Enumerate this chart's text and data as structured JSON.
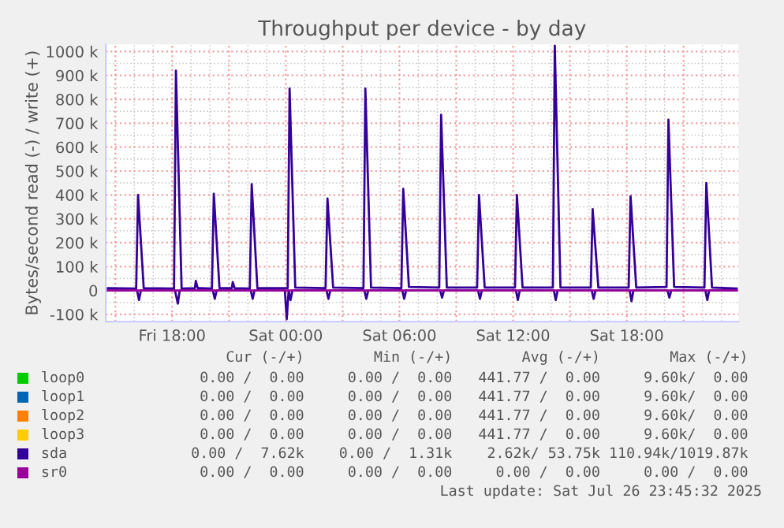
{
  "chart_data": {
    "type": "line",
    "title": "Throughput per device - by day",
    "ylabel": "Bytes/second read (-) / write (+)",
    "xlim": [
      "2025-07-25T14:30",
      "2025-07-26T23:54"
    ],
    "xticks": [
      {
        "value": "2025-07-25T15:00",
        "label": null
      },
      {
        "value": "2025-07-25T18:00",
        "label": "Fri 18:00"
      },
      {
        "value": "2025-07-25T21:00",
        "label": null
      },
      {
        "value": "2025-07-26T00:00",
        "label": "Sat 00:00"
      },
      {
        "value": "2025-07-26T03:00",
        "label": null
      },
      {
        "value": "2025-07-26T06:00",
        "label": "Sat 06:00"
      },
      {
        "value": "2025-07-26T09:00",
        "label": null
      },
      {
        "value": "2025-07-26T12:00",
        "label": "Sat 12:00"
      },
      {
        "value": "2025-07-26T15:00",
        "label": null
      },
      {
        "value": "2025-07-26T18:00",
        "label": "Sat 18:00"
      },
      {
        "value": "2025-07-26T21:00",
        "label": null
      }
    ],
    "ylim": [
      -130,
      1030
    ],
    "yticks": [
      {
        "value": -100,
        "label": "-100 k"
      },
      {
        "value": 0,
        "label": "0"
      },
      {
        "value": 100,
        "label": "100 k"
      },
      {
        "value": 200,
        "label": "200 k"
      },
      {
        "value": 300,
        "label": "300 k"
      },
      {
        "value": 400,
        "label": "400 k"
      },
      {
        "value": 500,
        "label": "500 k"
      },
      {
        "value": 600,
        "label": "600 k"
      },
      {
        "value": 700,
        "label": "700 k"
      },
      {
        "value": 800,
        "label": "800 k"
      },
      {
        "value": 900,
        "label": "900 k"
      },
      {
        "value": 1000,
        "label": "1000 k"
      }
    ],
    "grid": true,
    "legend": "bottom left",
    "marker": "none",
    "line_style": "solid",
    "series": [
      {
        "name": "loop0",
        "color": "#00cc00"
      },
      {
        "name": "loop1",
        "color": "#0066b3"
      },
      {
        "name": "loop2",
        "color": "#ff8000"
      },
      {
        "name": "loop3",
        "color": "#ffcc00"
      },
      {
        "name": "sda",
        "color": "#330099",
        "x": [
          "2025-07-25T14:36",
          "2025-07-25T16:06",
          "2025-07-25T16:12",
          "2025-07-25T16:30",
          "2025-07-25T18:06",
          "2025-07-25T18:12",
          "2025-07-25T18:30",
          "2025-07-25T19:12",
          "2025-07-25T19:15",
          "2025-07-25T19:21",
          "2025-07-25T20:06",
          "2025-07-25T20:12",
          "2025-07-25T20:30",
          "2025-07-25T21:09",
          "2025-07-25T21:12",
          "2025-07-25T21:18",
          "2025-07-25T22:06",
          "2025-07-25T22:12",
          "2025-07-25T22:30",
          "2025-07-26T00:06",
          "2025-07-26T00:12",
          "2025-07-26T00:30",
          "2025-07-26T02:06",
          "2025-07-26T02:12",
          "2025-07-26T02:30",
          "2025-07-26T04:06",
          "2025-07-26T04:12",
          "2025-07-26T04:30",
          "2025-07-26T06:06",
          "2025-07-26T06:12",
          "2025-07-26T06:30",
          "2025-07-26T08:06",
          "2025-07-26T08:12",
          "2025-07-26T08:30",
          "2025-07-26T10:06",
          "2025-07-26T10:12",
          "2025-07-26T10:30",
          "2025-07-26T12:06",
          "2025-07-26T12:12",
          "2025-07-26T12:30",
          "2025-07-26T14:06",
          "2025-07-26T14:12",
          "2025-07-26T14:30",
          "2025-07-26T16:06",
          "2025-07-26T16:12",
          "2025-07-26T16:30",
          "2025-07-26T18:06",
          "2025-07-26T18:12",
          "2025-07-26T18:30",
          "2025-07-26T20:06",
          "2025-07-26T20:12",
          "2025-07-26T20:30",
          "2025-07-26T22:06",
          "2025-07-26T22:12",
          "2025-07-26T22:30",
          "2025-07-26T23:48"
        ],
        "values": [
          10,
          8,
          400,
          10,
          8,
          920,
          8,
          10,
          40,
          10,
          8,
          405,
          10,
          10,
          35,
          10,
          8,
          445,
          10,
          10,
          845,
          12,
          10,
          385,
          12,
          10,
          845,
          12,
          10,
          425,
          15,
          12,
          735,
          12,
          12,
          400,
          12,
          12,
          400,
          12,
          12,
          1025,
          12,
          12,
          340,
          12,
          12,
          395,
          12,
          15,
          715,
          15,
          12,
          450,
          12,
          8
        ]
      },
      {
        "color": "#330099",
        "x": [
          "2025-07-25T14:36",
          "2025-07-25T16:09",
          "2025-07-25T16:15",
          "2025-07-25T16:21",
          "2025-07-25T18:09",
          "2025-07-25T18:18",
          "2025-07-25T18:24",
          "2025-07-25T20:09",
          "2025-07-25T20:15",
          "2025-07-25T20:21",
          "2025-07-25T22:09",
          "2025-07-25T22:15",
          "2025-07-25T22:21",
          "2025-07-25T23:57",
          "2025-07-26T00:03",
          "2025-07-26T00:09",
          "2025-07-26T00:15",
          "2025-07-26T00:21",
          "2025-07-26T02:09",
          "2025-07-26T02:15",
          "2025-07-26T02:21",
          "2025-07-26T04:09",
          "2025-07-26T04:15",
          "2025-07-26T04:21",
          "2025-07-26T06:09",
          "2025-07-26T06:15",
          "2025-07-26T06:21",
          "2025-07-26T08:09",
          "2025-07-26T08:15",
          "2025-07-26T08:21",
          "2025-07-26T10:09",
          "2025-07-26T10:15",
          "2025-07-26T10:21",
          "2025-07-26T12:09",
          "2025-07-26T12:15",
          "2025-07-26T12:21",
          "2025-07-26T14:09",
          "2025-07-26T14:15",
          "2025-07-26T14:21",
          "2025-07-26T16:09",
          "2025-07-26T16:15",
          "2025-07-26T16:21",
          "2025-07-26T18:09",
          "2025-07-26T18:15",
          "2025-07-26T18:21",
          "2025-07-26T20:09",
          "2025-07-26T20:15",
          "2025-07-26T20:21",
          "2025-07-26T22:09",
          "2025-07-26T22:15",
          "2025-07-26T22:21",
          "2025-07-26T23:48"
        ],
        "values": [
          0,
          0,
          -40,
          0,
          0,
          -55,
          0,
          0,
          -35,
          0,
          0,
          -35,
          0,
          0,
          -120,
          0,
          -40,
          0,
          0,
          -35,
          0,
          0,
          -35,
          0,
          0,
          -35,
          0,
          0,
          -30,
          0,
          0,
          -35,
          0,
          0,
          -40,
          0,
          0,
          -40,
          0,
          0,
          -35,
          0,
          0,
          -45,
          0,
          0,
          -30,
          0,
          0,
          -40,
          0,
          0
        ]
      },
      {
        "name": "sr0",
        "color": "#990099",
        "x": [
          "2025-07-25T14:36",
          "2025-07-26T23:48"
        ],
        "values": [
          0,
          0
        ]
      }
    ],
    "annotations": [
      "        Cur (-/+)        Min (-/+)        Avg (-/+)        Max (-/+)",
      "     0.00 /  0.00     0.00 /  0.00   441.77 /  0.00     9.60k/  0.00",
      "     0.00 /  0.00     0.00 /  0.00   441.77 /  0.00     9.60k/  0.00",
      "     0.00 /  0.00     0.00 /  0.00   441.77 /  0.00     9.60k/  0.00",
      "     0.00 /  0.00     0.00 /  0.00   441.77 /  0.00     9.60k/  0.00",
      "    0.00 /  7.62k    0.00 /  1.31k    2.62k/ 53.75k 110.94k/1019.87k",
      "     0.00 /  0.00     0.00 /  0.00     0.00 /  0.00     0.00 /  0.00",
      "Last update: Sat Jul 26 23:45:32 2025"
    ]
  }
}
